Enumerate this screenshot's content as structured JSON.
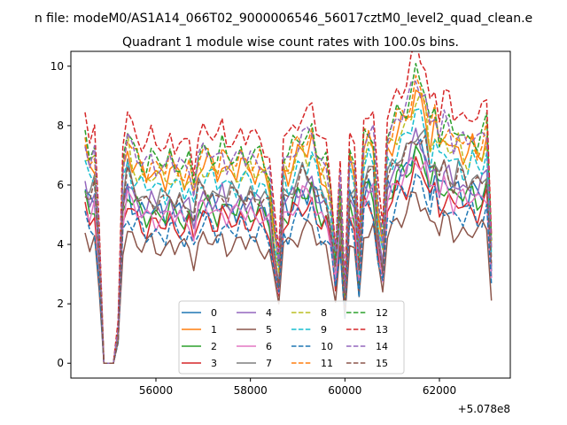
{
  "figure": {
    "suptitle": "n file: modeM0/AS1A14_066T02_9000006546_56017cztM0_level2_quad_clean.e",
    "title": "Quadrant 1 module wise count rates with 100.0s bins.",
    "x_offset_label": "+5.078e8"
  },
  "chart_data": {
    "type": "line",
    "title": "Quadrant 1 module wise count rates with 100.0s bins.",
    "xlabel": "",
    "ylabel": "",
    "x_offset": 507800000,
    "xlim": [
      54200,
      63500
    ],
    "ylim": [
      -0.5,
      10.5
    ],
    "x_ticks": [
      56000,
      58000,
      60000,
      62000
    ],
    "x_tick_labels": [
      "56000",
      "58000",
      "60000",
      "62000"
    ],
    "y_ticks": [
      0,
      2,
      4,
      6,
      8,
      10
    ],
    "y_tick_labels": [
      "0",
      "2",
      "4",
      "6",
      "8",
      "10"
    ],
    "grid": false,
    "legend": {
      "placement": "lower-center",
      "columns": 4
    },
    "x": [
      54500,
      54600,
      54700,
      54800,
      54900,
      55000,
      55100,
      55200,
      55300,
      55400,
      55500,
      55600,
      55700,
      55800,
      55900,
      56000,
      56100,
      56200,
      56300,
      56400,
      56500,
      56600,
      56700,
      56800,
      56900,
      57000,
      57100,
      57200,
      57300,
      57400,
      57500,
      57600,
      57700,
      57800,
      57900,
      58000,
      58100,
      58200,
      58300,
      58400,
      58500,
      58600,
      58700,
      58800,
      58900,
      59000,
      59100,
      59200,
      59300,
      59400,
      59500,
      59600,
      59700,
      59800,
      59900,
      60000,
      60100,
      60200,
      60300,
      60400,
      60500,
      60600,
      60700,
      60800,
      60900,
      61000,
      61100,
      61200,
      61300,
      61400,
      61500,
      61600,
      61700,
      61800,
      61900,
      62000,
      62100,
      62200,
      62300,
      62400,
      62500,
      62600,
      62700,
      62800,
      62900,
      63000,
      63100
    ],
    "shape": [
      1.0,
      0.92,
      0.96,
      0.55,
      0.0,
      0.0,
      0.0,
      0.15,
      0.9,
      1.04,
      0.96,
      0.92,
      0.9,
      0.88,
      0.91,
      0.89,
      0.9,
      0.87,
      0.92,
      0.88,
      0.9,
      0.86,
      0.89,
      0.8,
      0.93,
      0.95,
      0.94,
      0.93,
      0.9,
      0.95,
      0.91,
      0.92,
      0.9,
      0.94,
      0.91,
      0.93,
      0.9,
      0.92,
      0.89,
      0.84,
      0.62,
      0.45,
      0.93,
      0.9,
      0.95,
      1.0,
      1.02,
      1.0,
      1.04,
      0.95,
      0.9,
      0.88,
      0.75,
      0.5,
      0.8,
      0.3,
      0.95,
      0.9,
      0.5,
      1.0,
      1.05,
      1.02,
      0.7,
      0.55,
      1.02,
      1.05,
      1.1,
      1.12,
      1.15,
      1.2,
      1.28,
      1.25,
      1.2,
      1.05,
      1.12,
      1.02,
      1.08,
      1.05,
      1.0,
      1.04,
      1.0,
      0.98,
      1.02,
      0.99,
      1.0,
      1.06,
      0.55
    ],
    "series": [
      {
        "name": "0",
        "color": "#1f77b4",
        "dash": "solid",
        "base": 5.7,
        "phase": 0.0
      },
      {
        "name": "1",
        "color": "#ff7f0e",
        "dash": "solid",
        "base": 7.1,
        "phase": 0.7
      },
      {
        "name": "2",
        "color": "#2ca02c",
        "dash": "solid",
        "base": 5.6,
        "phase": 1.4
      },
      {
        "name": "3",
        "color": "#d62728",
        "dash": "solid",
        "base": 5.2,
        "phase": 2.1
      },
      {
        "name": "4",
        "color": "#9467bd",
        "dash": "solid",
        "base": 5.9,
        "phase": 2.8
      },
      {
        "name": "5",
        "color": "#8c564b",
        "dash": "solid",
        "base": 4.4,
        "phase": 3.5
      },
      {
        "name": "6",
        "color": "#e377c2",
        "dash": "solid",
        "base": 5.5,
        "phase": 4.2
      },
      {
        "name": "7",
        "color": "#7f7f7f",
        "dash": "solid",
        "base": 6.2,
        "phase": 4.9
      },
      {
        "name": "8",
        "color": "#bcbd22",
        "dash": "dashed",
        "base": 7.0,
        "phase": 5.6
      },
      {
        "name": "9",
        "color": "#17becf",
        "dash": "dashed",
        "base": 6.6,
        "phase": 0.35
      },
      {
        "name": "10",
        "color": "#1f77b4",
        "dash": "dashed",
        "base": 4.9,
        "phase": 1.05
      },
      {
        "name": "11",
        "color": "#ff7f0e",
        "dash": "dashed",
        "base": 7.4,
        "phase": 1.75
      },
      {
        "name": "12",
        "color": "#2ca02c",
        "dash": "dashed",
        "base": 7.6,
        "phase": 2.45
      },
      {
        "name": "13",
        "color": "#d62728",
        "dash": "dashed",
        "base": 8.3,
        "phase": 3.15
      },
      {
        "name": "14",
        "color": "#9467bd",
        "dash": "dashed",
        "base": 7.5,
        "phase": 3.85
      },
      {
        "name": "15",
        "color": "#8c564b",
        "dash": "dashed",
        "base": 6.1,
        "phase": 4.55
      }
    ]
  }
}
